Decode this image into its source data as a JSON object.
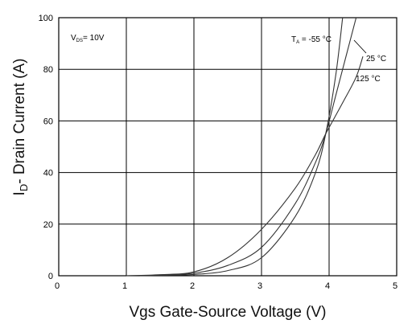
{
  "chart_data": {
    "type": "line",
    "title": "",
    "xlabel": "Vgs Gate-Source Voltage (V)",
    "ylabel": {
      "main": "I",
      "sub": "D",
      "rest": "- Drain Current (A)"
    },
    "xlim": [
      0,
      5
    ],
    "ylim": [
      0,
      100
    ],
    "x_ticks": [
      "0",
      "1",
      "2",
      "3",
      "4",
      "5"
    ],
    "y_ticks": [
      "0",
      "20",
      "40",
      "60",
      "80",
      "100"
    ],
    "grid": true,
    "annotations": {
      "condition": {
        "main": "V",
        "sub": "DS",
        "rest": "= 10V"
      },
      "temp_prefix": {
        "main": "T",
        "sub": "A",
        "rest": " = "
      }
    },
    "series": [
      {
        "name": "-55 °C",
        "x": [
          1.2,
          1.6,
          2.0,
          2.5,
          3.0,
          3.5,
          3.8,
          3.95,
          4.1,
          4.2
        ],
        "y": [
          0,
          0.2,
          0.5,
          2,
          7,
          23,
          40,
          55,
          78,
          100
        ]
      },
      {
        "name": "25 °C",
        "x": [
          1.2,
          1.6,
          2.0,
          2.5,
          3.0,
          3.5,
          3.8,
          3.95,
          4.1,
          4.25,
          4.4
        ],
        "y": [
          0,
          0.4,
          1,
          4,
          11,
          28,
          44,
          55,
          70,
          85,
          100
        ]
      },
      {
        "name": "125 °C",
        "x": [
          1.0,
          1.5,
          2.0,
          2.5,
          3.0,
          3.5,
          3.8,
          3.95,
          4.2,
          4.4,
          4.5
        ],
        "y": [
          0,
          0.4,
          1.5,
          7,
          18,
          34,
          47,
          55,
          67,
          77,
          85
        ]
      }
    ]
  }
}
